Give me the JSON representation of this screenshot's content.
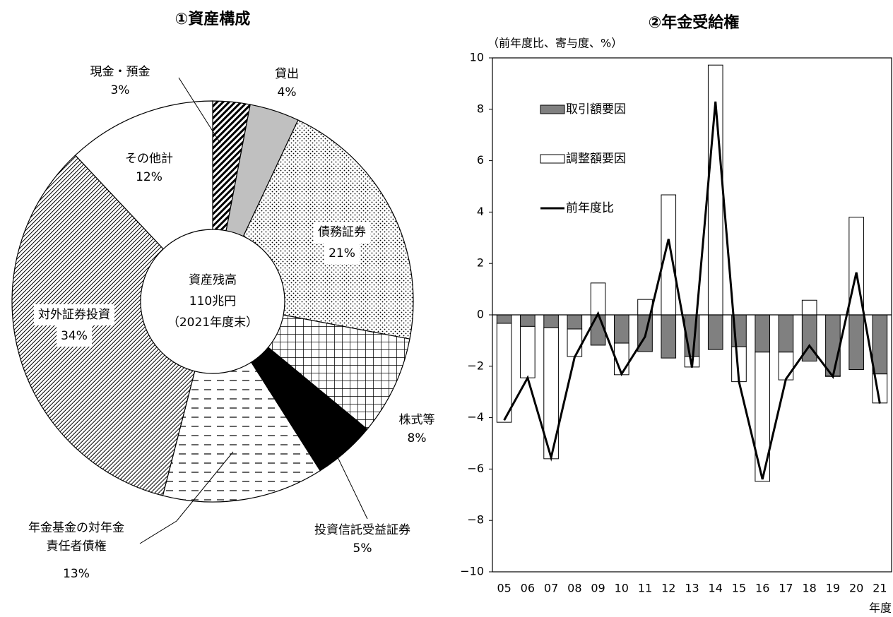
{
  "chart_data": [
    {
      "type": "donut",
      "title": "①資産構成",
      "center_label": [
        "資産残高",
        "110兆円",
        "（2021年度末）"
      ],
      "categories": [
        "現金・預金",
        "貸出",
        "債務証券",
        "株式等",
        "投資信託受益証券",
        "年金基金の対年金\n責任者債権",
        "対外証券投資",
        "その他計"
      ],
      "values": [
        3,
        4,
        21,
        8,
        5,
        13,
        34,
        12
      ],
      "value_labels": [
        "3%",
        "4%",
        "21%",
        "8%",
        "5%",
        "13%",
        "34%",
        "12%"
      ],
      "fills": [
        "hatch-dense",
        "#c0c0c0",
        "dots",
        "grid",
        "#000000",
        "dashes",
        "hatch-fine",
        "#ffffff"
      ]
    },
    {
      "type": "stacked-bar-line",
      "title": "②年金受給権",
      "y_label": "（前年度比、寄与度、%）",
      "x_label": "年度",
      "categories": [
        "05",
        "06",
        "07",
        "08",
        "09",
        "10",
        "11",
        "12",
        "13",
        "14",
        "15",
        "16",
        "17",
        "18",
        "19",
        "20",
        "21"
      ],
      "series": [
        {
          "name": "取引額要因",
          "kind": "bar",
          "color": "#808080",
          "values": [
            -0.33,
            -0.45,
            -0.5,
            -0.55,
            -1.18,
            -1.1,
            -1.43,
            -1.68,
            -1.62,
            -1.35,
            -1.24,
            -1.45,
            -1.45,
            -1.8,
            -2.35,
            -2.13,
            -2.3
          ]
        },
        {
          "name": "調整額要因",
          "kind": "bar",
          "color": "#ffffff",
          "values": [
            -3.85,
            -2.0,
            -5.1,
            -1.07,
            1.24,
            -1.23,
            0.6,
            4.67,
            -0.41,
            9.72,
            -1.36,
            -5.03,
            -1.08,
            0.57,
            -0.05,
            3.8,
            -1.13
          ]
        },
        {
          "name": "前年度比",
          "kind": "line",
          "color": "#000000",
          "values": [
            -4.1,
            -2.45,
            -5.55,
            -1.65,
            0.05,
            -2.3,
            -0.85,
            2.95,
            -2.05,
            8.3,
            -2.6,
            -6.4,
            -2.5,
            -1.2,
            -2.4,
            1.65,
            -3.45
          ]
        }
      ],
      "ylim": [
        -10,
        10
      ],
      "yticks": [
        {
          "value": -10,
          "label": "−10"
        },
        {
          "value": -8,
          "label": "−8"
        },
        {
          "value": -6,
          "label": "−6"
        },
        {
          "value": -4,
          "label": "−4"
        },
        {
          "value": -2,
          "label": "−2"
        },
        0,
        2,
        4,
        6,
        8,
        10
      ]
    }
  ]
}
